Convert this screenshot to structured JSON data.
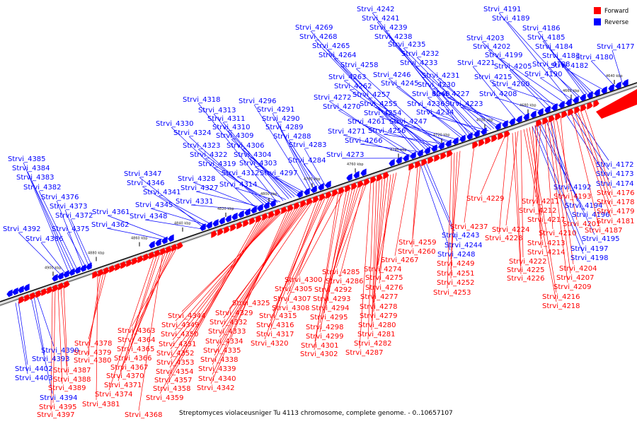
{
  "title": "Streptomyces violaceusniger Tu 4113 chromosome, complete genome. - 0..10657107",
  "colors": {
    "forward": "#ff0000",
    "reverse": "#0000ff",
    "line_forward": "#ee0000",
    "line_reverse": "#0000ee"
  },
  "legend": [
    {
      "label": "Forward",
      "color": "#ff0000"
    },
    {
      "label": "Reverse",
      "color": "#0000ff"
    }
  ],
  "ticks": [
    "4640 kbp",
    "4660 kbp",
    "4680 kbp",
    "4700 kbp",
    "4720 kbp",
    "4740 kbp",
    "4760 kbp",
    "4780 kbp",
    "4800 kbp",
    "4820 kbp",
    "4840 kbp",
    "4860 kbp",
    "4880 kbp",
    "4900 kbp"
  ],
  "reverse_labels": [
    "Strvi_4177",
    "Strvi_4180",
    "Strvi_4182",
    "Strvi_4183",
    "Strvi_4184",
    "Strvi_4185",
    "Strvi_4186",
    "Strvi_4188",
    "Strvi_4189",
    "Strvi_4190",
    "Strvi_4191",
    "Strvi_4199",
    "Strvi_4200",
    "Strvi_4202",
    "Strvi_4203",
    "Strvi_4205",
    "Strvi_4208",
    "Strvi_4215",
    "Strvi_4221",
    "Strvi_4223",
    "Strvi_4227",
    "Strvi_4230",
    "Strvi_4231",
    "Strvi_4232",
    "Strvi_4233",
    "Strvi_4234",
    "Strvi_4235",
    "Strvi_4236",
    "Strvi_4238",
    "Strvi_4239",
    "Strvi_4240",
    "Strvi_4241",
    "Strvi_4242",
    "Strvi_4245",
    "Strvi_4246",
    "Strvi_4247",
    "Strvi_4254",
    "Strvi_4255",
    "Strvi_4256",
    "Strvi_4257",
    "Strvi_4258",
    "Strvi_4261",
    "Strvi_4262",
    "Strvi_4263",
    "Strvi_4264",
    "Strvi_4265",
    "Strvi_4266",
    "Strvi_4268",
    "Strvi_4269",
    "Strvi_4270",
    "Strvi_4271",
    "Strvi_4272",
    "Strvi_4273",
    "Strvi_4283",
    "Strvi_4284",
    "Strvi_4288",
    "Strvi_4289",
    "Strvi_4290",
    "Strvi_4291",
    "Strvi_4296",
    "Strvi_4297",
    "Strvi_4303",
    "Strvi_4304",
    "Strvi_4306",
    "Strvi_4309",
    "Strvi_4310",
    "Strvi_4311",
    "Strvi_4312",
    "Strvi_4313",
    "Strvi_4314",
    "Strvi_4318",
    "Strvi_4319",
    "Strvi_4322",
    "Strvi_4323",
    "Strvi_4324",
    "Strvi_4327",
    "Strvi_4328",
    "Strvi_4330",
    "Strvi_4331",
    "Strvi_4341",
    "Strvi_4345",
    "Strvi_4346",
    "Strvi_4347",
    "Strvi_4348",
    "Strvi_4361",
    "Strvi_4362",
    "Strvi_4372",
    "Strvi_4373",
    "Strvi_4375",
    "Strvi_4376",
    "Strvi_4382",
    "Strvi_4383",
    "Strvi_4384",
    "Strvi_4385",
    "Strvi_4386",
    "Strvi_4392",
    "Strvi_4172",
    "Strvi_4173",
    "Strvi_4174",
    "Strvi_4192",
    "Strvi_4194",
    "Strvi_4195",
    "Strvi_4196",
    "Strvi_4197",
    "Strvi_4198",
    "Strvi_4243",
    "Strvi_4244",
    "Strvi_4248",
    "Strvi_4390",
    "Strvi_4393",
    "Strvi_4394",
    "Strvi_4402",
    "Strvi_4403"
  ],
  "forward_labels": [
    "Strvi_4176",
    "Strvi_4178",
    "Strvi_4179",
    "Strvi_4181",
    "Strvi_4187",
    "Strvi_4193",
    "Strvi_4201",
    "Strvi_4204",
    "Strvi_4207",
    "Strvi_4209",
    "Strvi_4210",
    "Strvi_4211",
    "Strvi_4212",
    "Strvi_4213",
    "Strvi_4214",
    "Strvi_4216",
    "Strvi_4217",
    "Strvi_4218",
    "Strvi_4222",
    "Strvi_4224",
    "Strvi_4225",
    "Strvi_4226",
    "Strvi_4228",
    "Strvi_4229",
    "Strvi_4237",
    "Strvi_4249",
    "Strvi_4251",
    "Strvi_4252",
    "Strvi_4253",
    "Strvi_4259",
    "Strvi_4260",
    "Strvi_4267",
    "Strvi_4274",
    "Strvi_4275",
    "Strvi_4276",
    "Strvi_4277",
    "Strvi_4278",
    "Strvi_4279",
    "Strvi_4280",
    "Strvi_4281",
    "Strvi_4282",
    "Strvi_4285",
    "Strvi_4286",
    "Strvi_4287",
    "Strvi_4292",
    "Strvi_4293",
    "Strvi_4294",
    "Strvi_4295",
    "Strvi_4298",
    "Strvi_4299",
    "Strvi_4300",
    "Strvi_4301",
    "Strvi_4302",
    "Strvi_4305",
    "Strvi_4307",
    "Strvi_4308",
    "Strvi_4315",
    "Strvi_4316",
    "Strvi_4317",
    "Strvi_4320",
    "Strvi_4325",
    "Strvi_4329",
    "Strvi_4332",
    "Strvi_4333",
    "Strvi_4334",
    "Strvi_4335",
    "Strvi_4338",
    "Strvi_4339",
    "Strvi_4340",
    "Strvi_4342",
    "Strvi_4344",
    "Strvi_4349",
    "Strvi_4350",
    "Strvi_4351",
    "Strvi_4352",
    "Strvi_4353",
    "Strvi_4354",
    "Strvi_4357",
    "Strvi_4358",
    "Strvi_4359",
    "Strvi_4363",
    "Strvi_4364",
    "Strvi_4365",
    "Strvi_4366",
    "Strvi_4367",
    "Strvi_4368",
    "Strvi_4370",
    "Strvi_4371",
    "Strvi_4374",
    "Strvi_4378",
    "Strvi_4379",
    "Strvi_4380",
    "Strvi_4381",
    "Strvi_4387",
    "Strvi_4388",
    "Strvi_4389",
    "Strvi_4395",
    "Strvi_4397"
  ]
}
